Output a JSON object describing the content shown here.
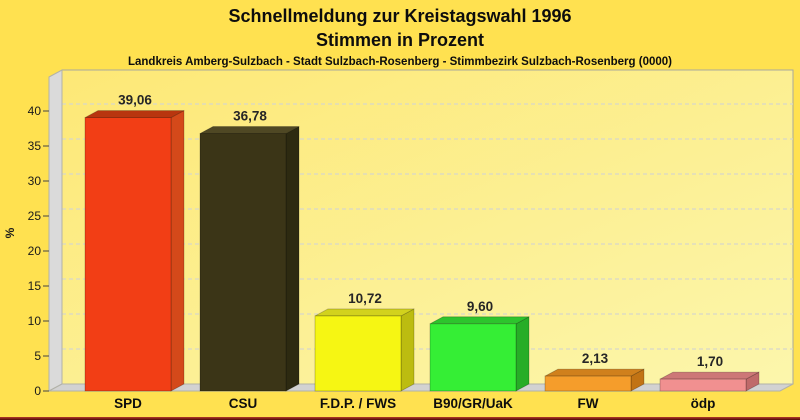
{
  "page": {
    "background_color": "#ffe150",
    "bottom_strip_colors": [
      "#b5392a",
      "#4a0c06"
    ]
  },
  "title": {
    "line1": "Schnellmeldung zur Kreistagswahl 1996",
    "line2": "Stimmen in Prozent",
    "subtitle": "Landkreis Amberg-Sulzbach - Stadt Sulzbach-Rosenberg - Stimmbezirk Sulzbach-Rosenberg (0000)"
  },
  "chart_data": {
    "type": "bar",
    "style": "3d-column",
    "title": "Schnellmeldung zur Kreistagswahl 1996 - Stimmen in Prozent",
    "xlabel": "",
    "ylabel": "%",
    "ylim": [
      0,
      45
    ],
    "yticks": [
      0,
      5,
      10,
      15,
      20,
      25,
      30,
      35,
      40
    ],
    "grid": "horizontal-dashed",
    "legend": "none",
    "categories": [
      "SPD",
      "CSU",
      "F.D.P. / FWS",
      "B90/GR/UaK",
      "FW",
      "ödp"
    ],
    "values": [
      39.06,
      36.78,
      10.72,
      9.6,
      2.13,
      1.7
    ],
    "value_labels": [
      "39,06",
      "36,78",
      "10,72",
      "9,60",
      "2,13",
      "1,70"
    ],
    "colors": [
      {
        "party": "SPD",
        "face": "#f23e15",
        "top": "#b8350f",
        "side": "#d4491a"
      },
      {
        "party": "CSU",
        "face": "#3b3517",
        "top": "#4f4824",
        "side": "#2d2a11"
      },
      {
        "party": "F.D.P. / FWS",
        "face": "#f6f613",
        "top": "#d2d21d",
        "side": "#bcbc10"
      },
      {
        "party": "B90/GR/UaK",
        "face": "#35ee35",
        "top": "#2dc42d",
        "side": "#27ad27"
      },
      {
        "party": "FW",
        "face": "#f59d2b",
        "top": "#d0801c",
        "side": "#c27314"
      },
      {
        "party": "ödp",
        "face": "#f19090",
        "top": "#cd7777",
        "side": "#bf6a6a"
      }
    ],
    "plot_background_gradient": [
      "#fde876",
      "#fcf6ac"
    ],
    "wall_color": "#dadada",
    "floor_color": "#d2d2d2",
    "gridline_color": "#d7d7ca",
    "text_color": "#1a1a1a"
  }
}
